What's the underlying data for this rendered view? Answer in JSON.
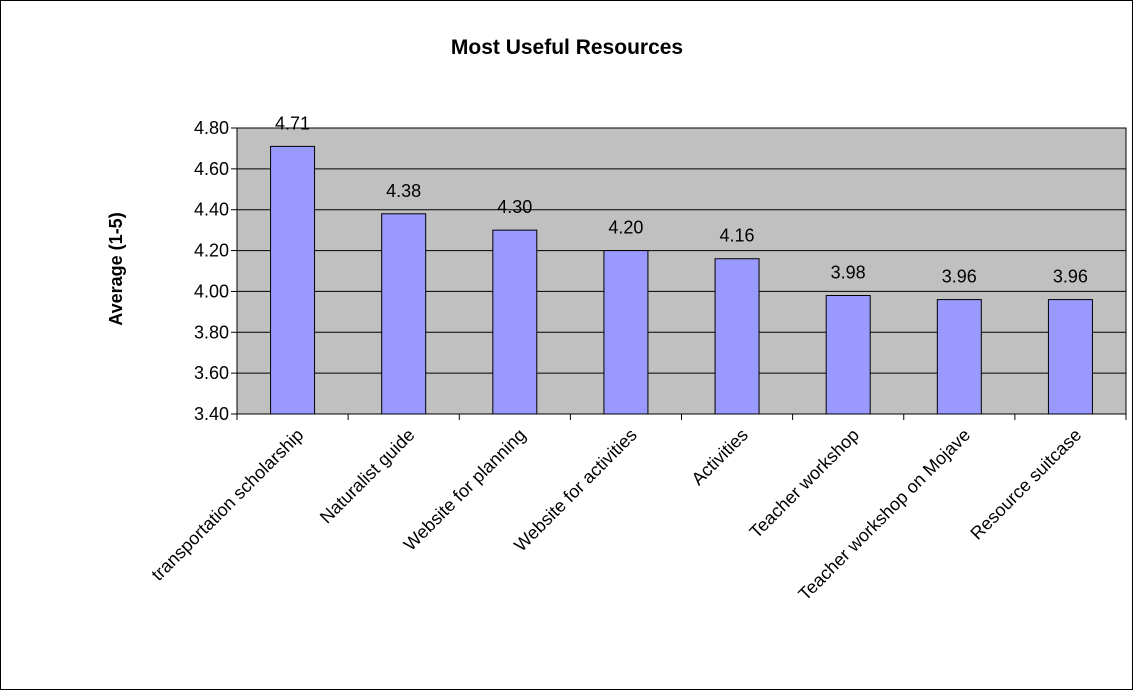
{
  "chart_data": {
    "type": "bar",
    "title": "Most Useful Resources",
    "ylabel": "Average (1-5)",
    "xlabel": "",
    "categories": [
      "transportation scholarship",
      "Naturalist guide",
      "Website for planning",
      "Website for activities",
      "Activities",
      "Teacher workshop",
      "Teacher workshop on Mojave",
      "Resource suitcase"
    ],
    "values": [
      4.71,
      4.38,
      4.3,
      4.2,
      4.16,
      3.98,
      3.96,
      3.96
    ],
    "value_labels": [
      "4.71",
      "4.38",
      "4.30",
      "4.20",
      "4.16",
      "3.98",
      "3.96",
      "3.96"
    ],
    "ylim": [
      3.4,
      4.8
    ],
    "yticks": [
      "3.40",
      "3.60",
      "3.80",
      "4.00",
      "4.20",
      "4.40",
      "4.60",
      "4.80"
    ],
    "grid": true,
    "legend": "none",
    "colors": {
      "bar": "#9999ff",
      "plot_background": "#c0c0c0",
      "gridline": "#000000",
      "border": "#000000"
    }
  }
}
